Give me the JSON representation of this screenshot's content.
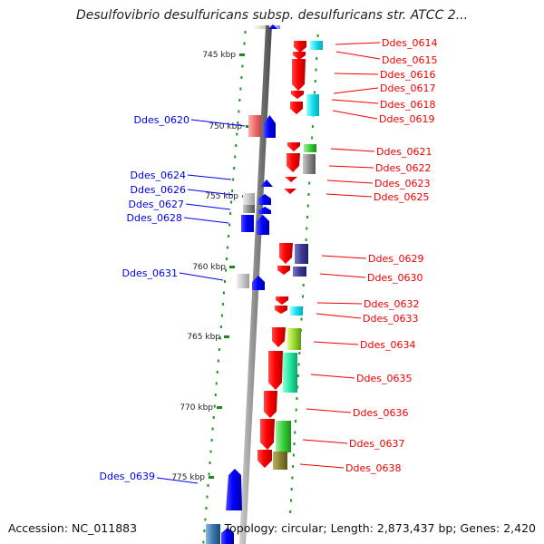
{
  "title": "Desulfovibrio desulfuricans subsp. desulfuricans str. ATCC 2...",
  "footer": {
    "accession": "Accession: NC_011883",
    "summary": "Topology: circular; Length: 2,873,437 bp; Genes: 2,420"
  },
  "ticks": [
    "745 kbp",
    "750 kbp",
    "755 kbp",
    "760 kbp",
    "765 kbp",
    "770 kbp",
    "775 kbp"
  ],
  "labels_left": [
    "Ddes_0620",
    "Ddes_0624",
    "Ddes_0626",
    "Ddes_0627",
    "Ddes_0628",
    "Ddes_0631",
    "Ddes_0639"
  ],
  "labels_right": [
    "Ddes_0614",
    "Ddes_0615",
    "Ddes_0616",
    "Ddes_0617",
    "Ddes_0618",
    "Ddes_0619",
    "Ddes_0621",
    "Ddes_0622",
    "Ddes_0623",
    "Ddes_0625",
    "Ddes_0629",
    "Ddes_0630",
    "Ddes_0632",
    "Ddes_0633",
    "Ddes_0634",
    "Ddes_0635",
    "Ddes_0636",
    "Ddes_0637",
    "Ddes_0638"
  ],
  "colors": {
    "forward_strand": "#0000ee",
    "reverse_strand": "#ee0000",
    "backbone": "#8a8a8a",
    "tick": "#1a8a1a",
    "dots": "#1a9a1a"
  }
}
